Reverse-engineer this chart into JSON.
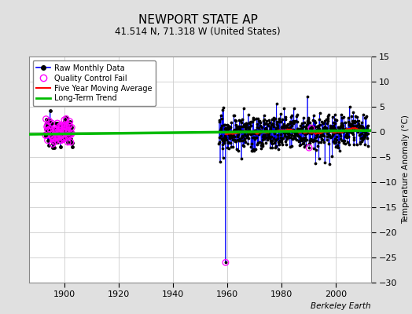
{
  "title": "NEWPORT STATE AP",
  "subtitle": "41.514 N, 71.318 W (United States)",
  "ylabel": "Temperature Anomaly (°C)",
  "credit": "Berkeley Earth",
  "ylim": [
    -30,
    15
  ],
  "yticks": [
    -30,
    -25,
    -20,
    -15,
    -10,
    -5,
    0,
    5,
    10,
    15
  ],
  "xlim": [
    1887,
    2013
  ],
  "xticks": [
    1900,
    1920,
    1940,
    1960,
    1980,
    2000
  ],
  "bg_color": "#e0e0e0",
  "plot_bg_color": "#ffffff",
  "grid_color": "#cccccc",
  "raw_color": "#0000ff",
  "raw_dot_color": "#000000",
  "qc_fail_color": "#ff00ff",
  "moving_avg_color": "#ff0000",
  "trend_color": "#00bb00",
  "early_data_start": 1893,
  "early_data_end": 1903,
  "main_data_start": 1957,
  "main_data_end": 2012,
  "random_seed": 12345
}
